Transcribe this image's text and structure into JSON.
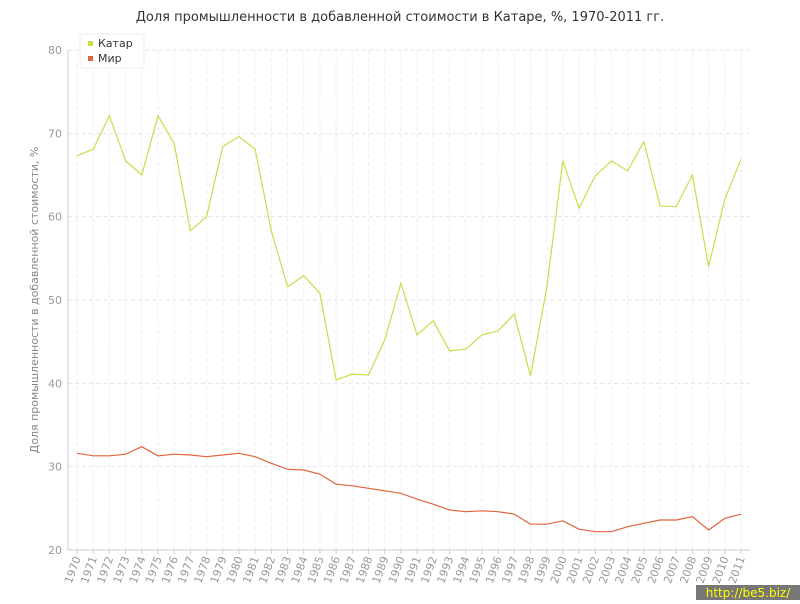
{
  "chart_data": {
    "type": "line",
    "title": "Доля промышленности в добавленной стоимости в Катаре, %, 1970-2011 гг.",
    "y_label": "Доля промышленности в добавленной стоимости, %",
    "categories": [
      "1970",
      "1971",
      "1972",
      "1973",
      "1974",
      "1975",
      "1976",
      "1977",
      "1978",
      "1979",
      "1980",
      "1981",
      "1982",
      "1983",
      "1984",
      "1985",
      "1986",
      "1987",
      "1988",
      "1989",
      "1990",
      "1991",
      "1992",
      "1993",
      "1994",
      "1995",
      "1996",
      "1997",
      "1998",
      "1999",
      "2000",
      "2001",
      "2002",
      "2003",
      "2004",
      "2005",
      "2006",
      "2007",
      "2008",
      "2009",
      "2010",
      "2011"
    ],
    "series": [
      {
        "name": "Катар",
        "color": "#c5df4a",
        "values": [
          67.3,
          68.1,
          72.1,
          66.7,
          65.0,
          72.1,
          68.8,
          58.3,
          60.0,
          68.4,
          69.6,
          68.1,
          58.3,
          51.6,
          52.9,
          50.8,
          40.4,
          41.1,
          41.0,
          45.2,
          52.0,
          45.8,
          47.5,
          43.9,
          44.1,
          45.8,
          46.3,
          48.3,
          40.9,
          51.4,
          66.7,
          61.0,
          64.9,
          66.7,
          65.5,
          69.0,
          61.3,
          61.2,
          65.0,
          54.0,
          62.1,
          66.9
        ]
      },
      {
        "name": "Мир",
        "color": "#e0643c",
        "values": [
          31.6,
          31.3,
          31.3,
          31.5,
          32.4,
          31.3,
          31.5,
          31.4,
          31.2,
          31.4,
          31.6,
          31.2,
          30.4,
          29.7,
          29.6,
          29.1,
          27.9,
          27.7,
          27.4,
          27.1,
          26.8,
          26.1,
          25.5,
          24.8,
          24.6,
          24.7,
          24.6,
          24.3,
          23.1,
          23.1,
          23.5,
          22.5,
          22.2,
          22.2,
          22.8,
          23.2,
          23.6,
          23.6,
          24.0,
          22.4,
          23.8,
          24.3
        ]
      }
    ],
    "ylim": [
      20,
      80
    ],
    "yticks": [
      20,
      30,
      40,
      50,
      60,
      70,
      80
    ],
    "grid": true,
    "legend": "top-left",
    "watermark": "http://be5.biz/"
  }
}
